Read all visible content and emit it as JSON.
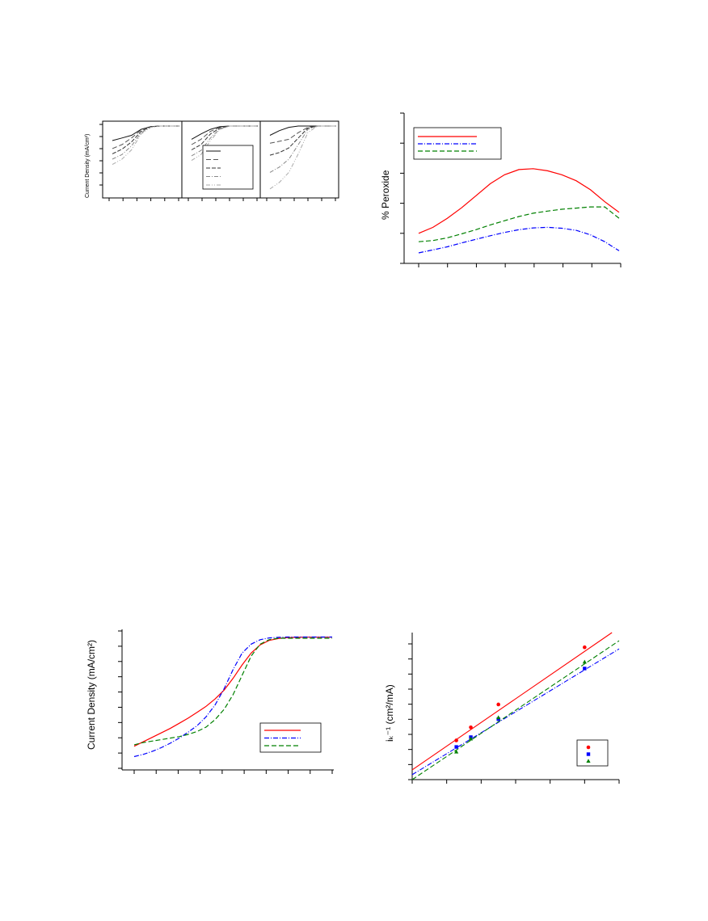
{
  "chart_data": [
    {
      "type": "line",
      "panel_count": 3,
      "ylabel": "Current Density (mA/cm²)",
      "legend": {
        "placement": "center-right of middle panel",
        "entries": 5
      },
      "series_styles": [
        {
          "color": "#111111",
          "dash": ""
        },
        {
          "color": "#555555",
          "dash": "6,3"
        },
        {
          "color": "#333333",
          "dash": "5,2"
        },
        {
          "color": "#888888",
          "dash": "5,2,1,2"
        },
        {
          "color": "#aaaaaa",
          "dash": "5,2,1,2,1,2"
        }
      ],
      "series": [
        {
          "values": [
            [
              0,
              0.78,
              0.82,
              0.86,
              0.95,
              0.99,
              1,
              1,
              1
            ],
            [
              0,
              0.8,
              0.88,
              0.95,
              0.99,
              1,
              1,
              1,
              1
            ],
            [
              0,
              0.86,
              0.93,
              0.98,
              1,
              1,
              1,
              1,
              1
            ]
          ]
        },
        {
          "values": [
            [
              0,
              0.66,
              0.72,
              0.82,
              0.94,
              0.99,
              1,
              1,
              1
            ],
            [
              0,
              0.72,
              0.8,
              0.92,
              0.98,
              1,
              1,
              1,
              1
            ],
            [
              0,
              0.74,
              0.77,
              0.8,
              0.9,
              0.98,
              1,
              1,
              1
            ]
          ]
        },
        {
          "values": [
            [
              0,
              0.58,
              0.65,
              0.76,
              0.92,
              0.99,
              1,
              1,
              1
            ],
            [
              0,
              0.64,
              0.72,
              0.88,
              0.97,
              1,
              1,
              1,
              1
            ],
            [
              0,
              0.56,
              0.6,
              0.67,
              0.82,
              0.97,
              1,
              1,
              1
            ]
          ]
        },
        {
          "values": [
            [
              0,
              0.5,
              0.57,
              0.7,
              0.9,
              0.98,
              1,
              1,
              1
            ],
            [
              0,
              0.55,
              0.63,
              0.82,
              0.96,
              1,
              1,
              1,
              1
            ],
            [
              0,
              0.3,
              0.38,
              0.5,
              0.72,
              0.95,
              1,
              1,
              1
            ]
          ]
        },
        {
          "values": [
            [
              0,
              0.42,
              0.5,
              0.64,
              0.88,
              0.98,
              1,
              1,
              1
            ],
            [
              0,
              0.48,
              0.57,
              0.78,
              0.95,
              1,
              1,
              1,
              1
            ],
            [
              0,
              0.05,
              0.15,
              0.3,
              0.58,
              0.9,
              1,
              1,
              1
            ]
          ]
        }
      ]
    },
    {
      "type": "line",
      "ylabel": "% Peroxide",
      "legend": {
        "placement": "top-left",
        "entries": 3
      },
      "x": [
        0,
        0.05,
        0.1,
        0.15,
        0.2,
        0.25,
        0.3,
        0.35,
        0.4,
        0.45,
        0.5,
        0.55,
        0.6,
        0.65,
        0.7
      ],
      "series": [
        {
          "color": "#ff0000",
          "dash": "",
          "values": [
            1.0,
            1.2,
            1.5,
            1.85,
            2.25,
            2.65,
            2.95,
            3.12,
            3.15,
            3.08,
            2.95,
            2.75,
            2.45,
            2.05,
            1.7
          ]
        },
        {
          "color": "#0000ff",
          "dash": "6,2,1,2",
          "values": [
            0.35,
            0.45,
            0.55,
            0.68,
            0.8,
            0.92,
            1.03,
            1.12,
            1.18,
            1.2,
            1.17,
            1.1,
            0.95,
            0.72,
            0.42
          ]
        },
        {
          "color": "#008000",
          "dash": "6,3",
          "values": [
            0.72,
            0.76,
            0.85,
            0.98,
            1.12,
            1.28,
            1.42,
            1.56,
            1.67,
            1.74,
            1.8,
            1.84,
            1.88,
            1.88,
            1.5
          ]
        }
      ],
      "ylim": [
        0,
        5
      ]
    },
    {
      "type": "line",
      "ylabel": "Current Density (mA/cm²)",
      "legend": {
        "placement": "bottom-right",
        "entries": 3
      },
      "x": [
        0,
        0.05,
        0.1,
        0.15,
        0.2,
        0.25,
        0.3,
        0.35,
        0.4,
        0.45,
        0.5,
        0.55,
        0.6,
        0.65,
        0.7,
        0.75,
        0.8,
        0.85,
        0.9,
        0.95,
        1.0,
        1.05,
        1.1
      ],
      "series": [
        {
          "color": "#ff0000",
          "dash": "",
          "values": [
            -7.4,
            -7.1,
            -6.8,
            -6.5,
            -6.2,
            -5.85,
            -5.5,
            -5.1,
            -4.7,
            -4.2,
            -3.6,
            -2.8,
            -1.9,
            -1.1,
            -0.55,
            -0.25,
            -0.12,
            -0.06,
            -0.04,
            -0.03,
            -0.03,
            -0.03,
            -0.03
          ]
        },
        {
          "color": "#0000ff",
          "dash": "6,2,1,2",
          "values": [
            -8.1,
            -7.95,
            -7.75,
            -7.5,
            -7.2,
            -6.85,
            -6.45,
            -6.0,
            -5.4,
            -4.6,
            -3.5,
            -2.2,
            -1.1,
            -0.5,
            -0.2,
            -0.08,
            -0.04,
            -0.02,
            -0.02,
            -0.02,
            -0.02,
            -0.02,
            -0.02
          ]
        },
        {
          "color": "#008000",
          "dash": "6,3",
          "values": [
            -7.3,
            -7.15,
            -7.05,
            -6.95,
            -6.85,
            -6.75,
            -6.6,
            -6.4,
            -6.1,
            -5.6,
            -4.9,
            -3.9,
            -2.6,
            -1.3,
            -0.5,
            -0.2,
            -0.1,
            -0.1,
            -0.1,
            -0.1,
            -0.1,
            -0.1,
            -0.1
          ]
        }
      ],
      "ylim": [
        -9,
        0.5
      ]
    },
    {
      "type": "scatter",
      "ylabel": "iₖ⁻¹ (cm²/mA)",
      "legend": {
        "placement": "bottom-right",
        "entries": 3
      },
      "xlim": [
        0,
        0.3
      ],
      "ylim": [
        0,
        0.9
      ],
      "series": [
        {
          "color": "#ff0000",
          "marker": "circle",
          "dash": "",
          "points": [
            [
              0.064,
              0.24
            ],
            [
              0.085,
              0.32
            ],
            [
              0.125,
              0.46
            ],
            [
              0.25,
              0.81
            ]
          ],
          "fit": [
            [
              0,
              0.06
            ],
            [
              0.3,
              0.93
            ]
          ]
        },
        {
          "color": "#0000ff",
          "marker": "square",
          "dash": "6,2,1,2",
          "points": [
            [
              0.064,
              0.2
            ],
            [
              0.085,
              0.26
            ],
            [
              0.125,
              0.37
            ],
            [
              0.25,
              0.68
            ]
          ],
          "fit": [
            [
              0,
              0.03
            ],
            [
              0.3,
              0.8
            ]
          ]
        },
        {
          "color": "#008000",
          "marker": "triangle",
          "dash": "6,3",
          "points": [
            [
              0.064,
              0.17
            ],
            [
              0.085,
              0.25
            ],
            [
              0.125,
              0.38
            ],
            [
              0.25,
              0.72
            ]
          ],
          "fit": [
            [
              0,
              0.0
            ],
            [
              0.3,
              0.85
            ]
          ]
        }
      ]
    }
  ]
}
